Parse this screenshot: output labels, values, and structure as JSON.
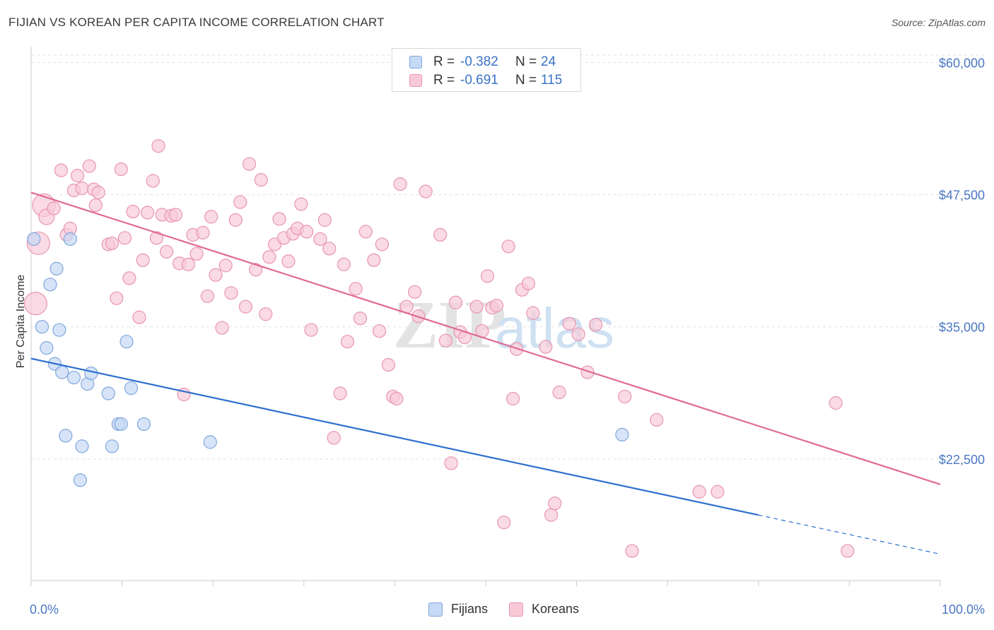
{
  "header": {
    "title": "FIJIAN VS KOREAN PER CAPITA INCOME CORRELATION CHART",
    "source": "Source: ZipAtlas.com"
  },
  "legend": {
    "rows": [
      {
        "r_label": "R =",
        "r_value": "-0.382",
        "n_label": "N =",
        "n_value": "24"
      },
      {
        "r_label": "R =",
        "r_value": "-0.691",
        "n_label": "N =",
        "n_value": "115"
      }
    ],
    "series_names": [
      "Fijians",
      "Koreans"
    ]
  },
  "colors": {
    "fijian_fill": "#c6d9f5",
    "fijian_stroke": "#7fa7dd",
    "fijian_line": "#2e6fce",
    "korean_fill": "#f8cad8",
    "korean_stroke": "#e895b0",
    "korean_line": "#e06a93",
    "tick_label": "#4a78c4"
  },
  "chart_data": {
    "type": "scatter",
    "title": "FIJIAN VS KOREAN PER CAPITA INCOME CORRELATION CHART",
    "xlabel": "",
    "ylabel": "Per Capita Income",
    "xlim": [
      0,
      100
    ],
    "ylim": [
      11000,
      61500
    ],
    "x_tick_labels": [
      "0.0%",
      "100.0%"
    ],
    "y_ticks": [
      22500,
      35000,
      47500,
      60000
    ],
    "y_tick_labels": [
      "$22,500",
      "$35,000",
      "$47,500",
      "$60,000"
    ],
    "watermark": {
      "zip": "ZIP",
      "atlas": "atlas"
    },
    "series": [
      {
        "name": "Fijians",
        "r": -0.382,
        "n": 24,
        "trend": {
          "x0": 0,
          "y0": 32000,
          "x1": 80,
          "y1": 17200,
          "dash_to_x": 100,
          "dash_to_y": 13500
        },
        "points": [
          [
            0.3,
            43300,
            1
          ],
          [
            2.1,
            39000,
            1
          ],
          [
            2.8,
            40500,
            1
          ],
          [
            1.2,
            35000,
            1
          ],
          [
            3.1,
            34700,
            1
          ],
          [
            1.7,
            33000,
            1
          ],
          [
            4.3,
            43300,
            1
          ],
          [
            10.5,
            33600,
            1
          ],
          [
            2.6,
            31500,
            1
          ],
          [
            3.4,
            30700,
            1
          ],
          [
            4.7,
            30200,
            1
          ],
          [
            6.2,
            29600,
            1
          ],
          [
            6.6,
            30600,
            1
          ],
          [
            8.5,
            28700,
            1
          ],
          [
            11.0,
            29200,
            1
          ],
          [
            9.6,
            25800,
            1
          ],
          [
            9.9,
            25800,
            1
          ],
          [
            12.4,
            25800,
            1
          ],
          [
            3.8,
            24700,
            1
          ],
          [
            5.6,
            23700,
            1
          ],
          [
            8.9,
            23700,
            1
          ],
          [
            19.7,
            24100,
            1
          ],
          [
            5.4,
            20500,
            1
          ],
          [
            65.0,
            24800,
            1
          ]
        ]
      },
      {
        "name": "Koreans",
        "r": -0.691,
        "n": 115,
        "trend": {
          "x0": 0,
          "y0": 47700,
          "x1": 100,
          "y1": 20100
        },
        "points": [
          [
            0.5,
            37200,
            3
          ],
          [
            0.8,
            42900,
            3
          ],
          [
            1.4,
            46500,
            3
          ],
          [
            1.7,
            45400,
            2
          ],
          [
            2.5,
            46200,
            1
          ],
          [
            3.3,
            49800,
            1
          ],
          [
            3.9,
            43700,
            1
          ],
          [
            4.3,
            44300,
            1
          ],
          [
            4.7,
            47900,
            1
          ],
          [
            5.1,
            49300,
            1
          ],
          [
            5.6,
            48100,
            1
          ],
          [
            6.4,
            50200,
            1
          ],
          [
            6.9,
            48000,
            1
          ],
          [
            7.4,
            47700,
            1
          ],
          [
            7.1,
            46500,
            1
          ],
          [
            8.5,
            42800,
            1
          ],
          [
            8.9,
            42900,
            1
          ],
          [
            9.4,
            37700,
            1
          ],
          [
            9.9,
            49900,
            1
          ],
          [
            10.3,
            43400,
            1
          ],
          [
            10.8,
            39600,
            1
          ],
          [
            11.2,
            45900,
            1
          ],
          [
            11.9,
            35900,
            1
          ],
          [
            12.3,
            41300,
            1
          ],
          [
            12.8,
            45800,
            1
          ],
          [
            13.4,
            48800,
            1
          ],
          [
            13.8,
            43400,
            1
          ],
          [
            14.4,
            45600,
            1
          ],
          [
            14.9,
            42100,
            1
          ],
          [
            15.4,
            45500,
            1
          ],
          [
            15.9,
            45600,
            1
          ],
          [
            16.3,
            41000,
            1
          ],
          [
            16.8,
            28600,
            1
          ],
          [
            17.3,
            40900,
            1
          ],
          [
            17.8,
            43700,
            1
          ],
          [
            18.2,
            41900,
            1
          ],
          [
            18.9,
            43900,
            1
          ],
          [
            19.4,
            37900,
            1
          ],
          [
            19.8,
            45400,
            1
          ],
          [
            20.3,
            39900,
            1
          ],
          [
            21.0,
            34900,
            1
          ],
          [
            21.4,
            40800,
            1
          ],
          [
            22.0,
            38200,
            1
          ],
          [
            22.5,
            45100,
            1
          ],
          [
            23.0,
            46800,
            1
          ],
          [
            23.6,
            36900,
            1
          ],
          [
            24.0,
            50400,
            1
          ],
          [
            24.7,
            40400,
            1
          ],
          [
            25.3,
            48900,
            1
          ],
          [
            25.8,
            36200,
            1
          ],
          [
            26.2,
            41600,
            1
          ],
          [
            26.8,
            42800,
            1
          ],
          [
            27.3,
            45200,
            1
          ],
          [
            27.8,
            43400,
            1
          ],
          [
            28.3,
            41200,
            1
          ],
          [
            28.8,
            43800,
            1
          ],
          [
            29.3,
            44300,
            1
          ],
          [
            29.7,
            46600,
            1
          ],
          [
            30.3,
            44000,
            1
          ],
          [
            30.8,
            34700,
            1
          ],
          [
            31.8,
            43300,
            1
          ],
          [
            32.3,
            45100,
            1
          ],
          [
            32.8,
            42400,
            1
          ],
          [
            33.3,
            24500,
            1
          ],
          [
            34.0,
            28700,
            1
          ],
          [
            34.4,
            40900,
            1
          ],
          [
            34.8,
            33600,
            1
          ],
          [
            35.7,
            38600,
            1
          ],
          [
            36.2,
            35800,
            1
          ],
          [
            36.8,
            44000,
            1
          ],
          [
            37.7,
            41300,
            1
          ],
          [
            38.3,
            34600,
            1
          ],
          [
            38.6,
            42800,
            1
          ],
          [
            39.3,
            31400,
            1
          ],
          [
            39.8,
            28400,
            1
          ],
          [
            40.2,
            28200,
            1
          ],
          [
            40.6,
            48500,
            1
          ],
          [
            41.3,
            36900,
            1
          ],
          [
            42.2,
            38300,
            1
          ],
          [
            42.6,
            36000,
            1
          ],
          [
            43.4,
            47800,
            1
          ],
          [
            45.0,
            43700,
            1
          ],
          [
            45.6,
            33700,
            1
          ],
          [
            46.2,
            22100,
            1
          ],
          [
            46.7,
            37300,
            1
          ],
          [
            47.2,
            34500,
            1
          ],
          [
            47.7,
            34000,
            1
          ],
          [
            49.0,
            36900,
            1
          ],
          [
            49.6,
            34600,
            1
          ],
          [
            50.2,
            39800,
            1
          ],
          [
            50.7,
            36800,
            1
          ],
          [
            51.2,
            37000,
            1
          ],
          [
            52.0,
            16500,
            1
          ],
          [
            52.5,
            42600,
            1
          ],
          [
            53.4,
            32900,
            1
          ],
          [
            54.0,
            38500,
            1
          ],
          [
            54.7,
            39100,
            1
          ],
          [
            55.2,
            36300,
            1
          ],
          [
            56.6,
            33100,
            1
          ],
          [
            57.2,
            17200,
            1
          ],
          [
            57.6,
            18300,
            1
          ],
          [
            58.1,
            28800,
            1
          ],
          [
            59.2,
            35300,
            1
          ],
          [
            60.2,
            34300,
            1
          ],
          [
            61.2,
            30700,
            1
          ],
          [
            62.1,
            35200,
            1
          ],
          [
            65.3,
            28400,
            1
          ],
          [
            66.1,
            13800,
            1
          ],
          [
            68.8,
            26200,
            1
          ],
          [
            73.5,
            19400,
            1
          ],
          [
            75.5,
            19400,
            1
          ],
          [
            88.5,
            27800,
            1
          ],
          [
            89.8,
            13800,
            1
          ],
          [
            53.0,
            28200,
            1
          ],
          [
            14.0,
            52100,
            1
          ]
        ]
      }
    ]
  }
}
